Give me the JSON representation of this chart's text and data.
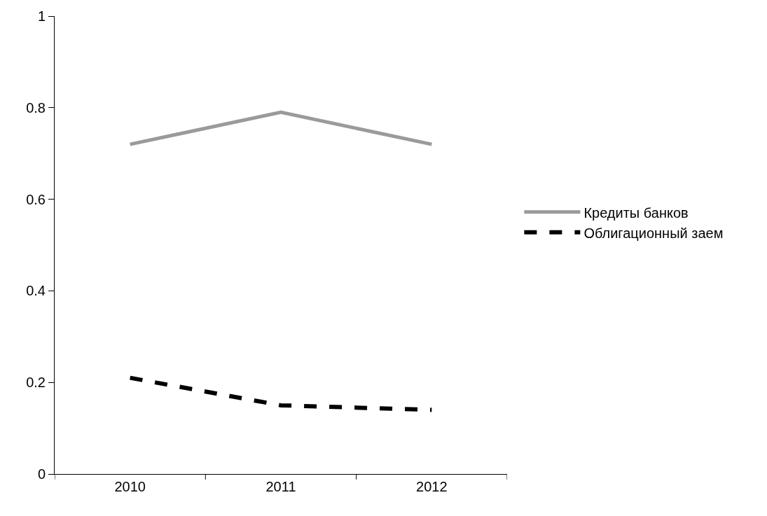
{
  "chart_data": {
    "type": "line",
    "categories": [
      "2010",
      "2011",
      "2012"
    ],
    "series": [
      {
        "name": "Кредиты банков",
        "color": "#9a9a9a",
        "values": [
          0.72,
          0.79,
          0.72
        ],
        "line_style": "solid"
      },
      {
        "name": "Облигационный заем",
        "color": "#000000",
        "values": [
          0.21,
          0.15,
          0.14
        ],
        "line_style": "dashed"
      }
    ],
    "ylim": [
      0,
      1
    ],
    "yticks": [
      0,
      0.2,
      0.4,
      0.6,
      0.8,
      1
    ],
    "legend": "right",
    "marker": "none"
  }
}
